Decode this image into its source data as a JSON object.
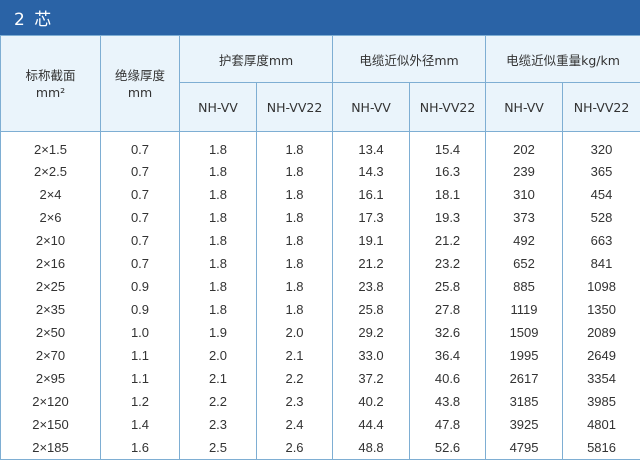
{
  "title": "2 芯",
  "headers": {
    "section": "标称截面",
    "section_unit": "mm²",
    "insulation": "绝缘厚度",
    "insulation_unit": "mm",
    "sheath": "护套厚度mm",
    "diameter": "电缆近似外径mm",
    "weight": "电缆近似重量kg/km",
    "sub": [
      "NH-VV",
      "NH-VV22",
      "NH-VV",
      "NH-VV22",
      "NH-VV",
      "NH-VV22"
    ]
  },
  "rows": [
    [
      "2×1.5",
      "0.7",
      "1.8",
      "1.8",
      "13.4",
      "15.4",
      "202",
      "320"
    ],
    [
      "2×2.5",
      "0.7",
      "1.8",
      "1.8",
      "14.3",
      "16.3",
      "239",
      "365"
    ],
    [
      "2×4",
      "0.7",
      "1.8",
      "1.8",
      "16.1",
      "18.1",
      "310",
      "454"
    ],
    [
      "2×6",
      "0.7",
      "1.8",
      "1.8",
      "17.3",
      "19.3",
      "373",
      "528"
    ],
    [
      "2×10",
      "0.7",
      "1.8",
      "1.8",
      "19.1",
      "21.2",
      "492",
      "663"
    ],
    [
      "2×16",
      "0.7",
      "1.8",
      "1.8",
      "21.2",
      "23.2",
      "652",
      "841"
    ],
    [
      "2×25",
      "0.9",
      "1.8",
      "1.8",
      "23.8",
      "25.8",
      "885",
      "1098"
    ],
    [
      "2×35",
      "0.9",
      "1.8",
      "1.8",
      "25.8",
      "27.8",
      "1119",
      "1350"
    ],
    [
      "2×50",
      "1.0",
      "1.9",
      "2.0",
      "29.2",
      "32.6",
      "1509",
      "2089"
    ],
    [
      "2×70",
      "1.1",
      "2.0",
      "2.1",
      "33.0",
      "36.4",
      "1995",
      "2649"
    ],
    [
      "2×95",
      "1.1",
      "2.1",
      "2.2",
      "37.2",
      "40.6",
      "2617",
      "3354"
    ],
    [
      "2×120",
      "1.2",
      "2.2",
      "2.3",
      "40.2",
      "43.8",
      "3185",
      "3985"
    ],
    [
      "2×150",
      "1.4",
      "2.3",
      "2.4",
      "44.4",
      "47.8",
      "3925",
      "4801"
    ],
    [
      "2×185",
      "1.6",
      "2.5",
      "2.6",
      "48.8",
      "52.6",
      "4795",
      "5816"
    ]
  ]
}
